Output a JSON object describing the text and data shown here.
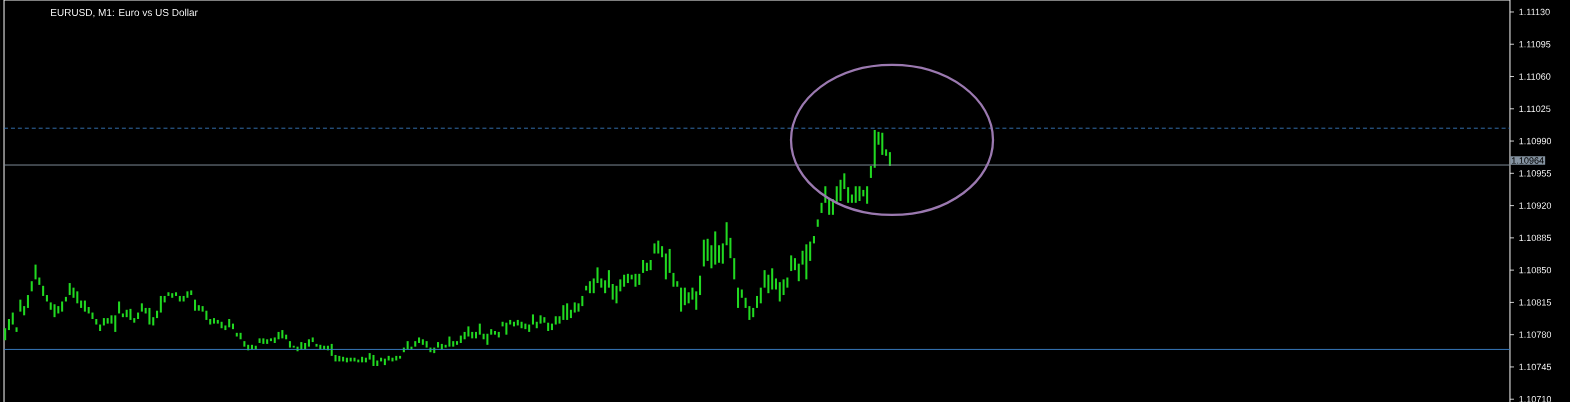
{
  "chart_data": {
    "type": "bar",
    "title": "EURUSD, M1:  Euro vs US Dollar",
    "color": "#21d921",
    "tick_labels": "y",
    "categories": [
      null,
      null,
      null,
      null,
      null,
      null,
      null,
      null,
      null,
      null,
      null,
      null,
      null,
      null,
      null,
      null,
      null,
      null,
      null,
      null,
      null,
      null,
      null,
      null,
      null,
      null,
      null,
      null,
      null,
      null,
      null,
      null,
      null,
      null,
      null,
      null,
      null,
      null,
      null,
      null,
      null,
      null,
      null,
      null,
      null,
      null,
      null,
      null,
      null,
      null,
      null,
      null,
      null,
      null,
      null,
      null,
      null,
      null,
      null,
      null,
      null,
      null,
      null,
      null,
      null,
      null,
      null,
      null,
      null,
      null,
      null,
      null,
      null,
      null,
      null,
      null,
      null,
      null,
      null,
      null,
      null,
      null,
      null,
      null,
      null,
      null,
      null,
      null,
      null,
      null,
      null,
      null,
      null,
      null,
      null,
      null,
      null,
      null,
      null,
      null,
      null,
      null,
      null,
      null,
      null,
      null,
      null,
      null,
      null,
      null,
      null,
      null,
      null,
      null,
      null,
      null,
      null,
      null,
      null,
      null,
      null,
      null,
      null,
      null,
      null,
      null,
      null,
      null,
      null,
      null,
      null,
      null,
      null,
      null,
      null,
      null,
      null,
      null,
      null,
      null,
      null,
      null,
      null,
      null,
      null,
      null,
      null,
      null,
      null,
      null,
      null,
      null,
      null,
      null,
      null,
      null,
      null,
      null,
      null,
      null,
      null,
      null,
      null,
      null,
      null,
      null,
      null,
      null,
      null,
      null,
      null,
      null,
      null,
      null,
      null,
      null,
      null,
      null,
      null,
      null,
      null,
      null,
      null,
      null,
      null,
      null,
      null,
      null,
      null,
      null,
      null,
      null,
      null,
      null,
      null,
      null,
      null,
      null,
      null,
      null,
      null,
      null,
      null,
      null,
      null,
      null,
      null,
      null,
      null,
      null,
      null,
      null,
      null,
      null,
      null,
      null,
      null,
      null,
      null,
      null,
      null,
      null,
      null,
      null,
      null,
      null,
      null,
      null,
      null,
      null,
      null,
      null,
      null,
      null,
      null,
      null,
      null,
      null,
      null,
      null,
      null,
      null,
      null,
      null,
      null,
      null,
      null,
      null,
      null,
      null,
      null,
      null,
      null,
      null,
      null,
      null,
      null,
      null,
      null,
      null,
      null,
      null,
      null,
      null,
      null,
      null,
      null,
      null,
      null,
      null,
      null,
      null,
      null,
      null,
      null,
      null,
      null,
      null,
      null,
      null,
      null,
      null,
      null,
      null,
      null,
      null,
      null,
      null,
      null,
      null,
      null,
      null,
      null,
      null,
      null,
      null,
      null,
      null,
      null,
      null,
      null,
      null,
      null,
      null,
      null,
      null,
      null,
      null,
      null,
      null,
      null,
      null,
      null,
      null,
      null,
      null,
      null,
      null,
      null,
      null,
      null,
      null,
      null,
      null,
      null,
      null,
      null,
      null,
      null,
      null,
      null,
      null,
      null,
      null,
      null,
      null,
      null,
      null,
      null,
      null,
      null,
      null,
      null,
      null,
      null,
      null,
      null,
      null,
      null,
      null,
      null,
      null,
      null,
      null,
      null,
      null,
      null,
      null,
      null,
      null,
      null,
      null,
      null,
      null,
      null,
      null,
      null,
      null,
      null,
      null,
      null,
      null,
      null,
      null,
      null,
      null,
      null,
      null,
      null,
      null,
      null,
      null,
      null,
      null,
      null,
      null,
      null,
      null,
      null,
      null,
      null,
      null,
      null,
      null,
      null,
      null,
      null
    ],
    "base": [
      1.10774,
      1.10785,
      1.10791,
      1.10783,
      1.10805,
      1.10801,
      1.10809,
      1.10827,
      1.1084,
      1.10834,
      1.10822,
      1.10816,
      1.10807,
      1.10799,
      1.10803,
      1.10805,
      1.10816,
      1.10823,
      1.1082,
      1.10814,
      1.10809,
      1.10805,
      1.10803,
      1.10797,
      1.10791,
      1.10784,
      1.1079,
      1.10792,
      1.10792,
      1.10783,
      1.10803,
      1.10799,
      1.10799,
      1.10796,
      1.10793,
      1.10797,
      1.10805,
      1.10803,
      1.10791,
      1.1079,
      1.10798,
      1.10804,
      1.10815,
      1.10822,
      1.1082,
      1.10822,
      1.10816,
      1.10816,
      1.1082,
      1.10823,
      1.10806,
      1.10806,
      1.10805,
      1.10796,
      1.10791,
      1.10792,
      1.10792,
      1.10787,
      1.10785,
      1.10788,
      1.10786,
      1.10778,
      1.10775,
      1.10767,
      1.10763,
      1.10764,
      1.10764,
      1.10771,
      1.1077,
      1.1077,
      1.10773,
      1.10771,
      1.10775,
      1.10776,
      1.10775,
      1.10766,
      1.10766,
      1.10762,
      1.10764,
      1.10764,
      1.10767,
      1.10772,
      1.10767,
      1.10764,
      1.10764,
      1.10763,
      1.10757,
      1.10751,
      1.10751,
      1.10751,
      1.1075,
      1.10751,
      1.10751,
      1.1075,
      1.1075,
      1.1075,
      1.10753,
      1.10746,
      1.10746,
      1.10751,
      1.10747,
      1.10752,
      1.10751,
      1.10752,
      1.10754,
      1.10761,
      1.10764,
      1.10764,
      1.10767,
      1.10771,
      1.10769,
      1.10766,
      1.10761,
      1.1076,
      1.10766,
      1.10764,
      1.10766,
      1.10767,
      1.10767,
      1.10769,
      1.10771,
      1.10775,
      1.10778,
      1.10776,
      1.10776,
      1.1078,
      1.10775,
      1.10769,
      1.1078,
      1.1078,
      1.10777,
      1.10789,
      1.1078,
      1.10791,
      1.10789,
      1.1079,
      1.10787,
      1.10786,
      1.10783,
      1.10791,
      1.10787,
      1.10792,
      1.10793,
      1.10784,
      1.10785,
      1.10791,
      1.10792,
      1.10796,
      1.10796,
      1.10798,
      1.10804,
      1.10805,
      1.10811,
      1.10828,
      1.10825,
      1.10825,
      1.10836,
      1.10831,
      1.10825,
      1.10831,
      1.10818,
      1.10814,
      1.10827,
      1.10832,
      1.10836,
      1.1084,
      1.10832,
      1.10834,
      1.10847,
      1.10849,
      1.1085,
      1.10868,
      1.10868,
      1.10864,
      1.1084,
      1.10847,
      1.10832,
      1.10832,
      1.10805,
      1.10812,
      1.10814,
      1.10818,
      1.10807,
      1.10823,
      1.10854,
      1.1086,
      1.10852,
      1.10856,
      1.10858,
      1.10857,
      1.10877,
      1.10863,
      1.1084,
      1.10809,
      1.1082,
      1.10809,
      1.10796,
      1.10799,
      1.10809,
      1.10814,
      1.10831,
      1.10825,
      1.10829,
      1.10829,
      1.10816,
      1.10823,
      1.10831,
      1.10849,
      1.1085,
      1.10838,
      1.10856,
      1.1084,
      1.1086,
      1.10879,
      1.10897,
      1.10912,
      1.10923,
      1.1091,
      1.1091,
      1.10923,
      1.10925,
      1.10938,
      1.10923,
      1.10923,
      1.10923,
      1.10925,
      1.1093,
      1.10922,
      1.1095,
      1.10961,
      1.10986,
      1.10975,
      1.10974,
      1.10963,
      null,
      null,
      null,
      null,
      null,
      null,
      null,
      null,
      null,
      null,
      null,
      null,
      null,
      null,
      null,
      null,
      null,
      null,
      null,
      null,
      null,
      null,
      null,
      null,
      null,
      null,
      null,
      null,
      null,
      null,
      null,
      null,
      null,
      null,
      null,
      null,
      null,
      null,
      null,
      null,
      null,
      null,
      null,
      null,
      null,
      null,
      null,
      null,
      null,
      null,
      null,
      null,
      null,
      null,
      null,
      null,
      null,
      null,
      null,
      null,
      null,
      null,
      null,
      null,
      null,
      null,
      null,
      null,
      null,
      null,
      null,
      null,
      null,
      null,
      null,
      null,
      null,
      null,
      null,
      null,
      null,
      null,
      null,
      null,
      null,
      null,
      null,
      null,
      null,
      null,
      null,
      null,
      null,
      null,
      null,
      null,
      null,
      null,
      null,
      null,
      null,
      null,
      null,
      null,
      null,
      null,
      null,
      null,
      null,
      null,
      null,
      null,
      null,
      null,
      null,
      null,
      null,
      null,
      null,
      null,
      null,
      null,
      null,
      null,
      null,
      null,
      null,
      null,
      null,
      null,
      null,
      null,
      null,
      null,
      null,
      null,
      null,
      null,
      null,
      null,
      null,
      null,
      null,
      null,
      null,
      null,
      null,
      null,
      null,
      null,
      null,
      null,
      null,
      null,
      null,
      null,
      null,
      null,
      null,
      null,
      null,
      null,
      null
    ],
    "values": [
      0.00013,
      0.00012,
      0.00013,
      5e-05,
      0.00013,
      0.0001,
      0.00014,
      0.00011,
      0.00016,
      8e-05,
      0.00011,
      7e-05,
      8e-05,
      0.00014,
      8e-05,
      0.00011,
      5e-05,
      0.00013,
      0.00011,
      0.00013,
      8e-05,
      0.00012,
      7e-05,
      7e-05,
      6e-05,
      7e-05,
      8e-05,
      6e-05,
      9e-05,
      0.00018,
      0.00013,
      4e-05,
      8e-05,
      0.00012,
      5e-05,
      7e-05,
      9e-05,
      6e-05,
      0.00018,
      9e-05,
      8e-05,
      0.00018,
      7e-05,
      4e-05,
      5e-05,
      4e-05,
      6e-05,
      6e-05,
      7e-05,
      5e-05,
      0.00012,
      6e-05,
      6e-05,
      0.0001,
      6e-05,
      6e-05,
      4e-05,
      7e-05,
      5e-05,
      9e-05,
      6e-05,
      4e-05,
      7e-05,
      6e-05,
      6e-05,
      5e-05,
      4e-05,
      5e-05,
      6e-05,
      5e-05,
      3e-05,
      6e-05,
      8e-05,
      9e-05,
      5e-05,
      7e-05,
      2e-05,
      5e-05,
      8e-05,
      7e-05,
      8e-05,
      5e-05,
      3e-05,
      5e-05,
      4e-05,
      5e-05,
      0.00013,
      7e-05,
      6e-05,
      5e-05,
      5e-05,
      4e-05,
      4e-05,
      3e-05,
      6e-05,
      5e-05,
      7e-05,
      0.00012,
      6e-05,
      4e-05,
      7e-05,
      5e-05,
      4e-05,
      5e-05,
      3e-05,
      5e-05,
      9e-05,
      3e-05,
      6e-05,
      6e-05,
      6e-05,
      7e-05,
      5e-05,
      6e-05,
      6e-05,
      6e-05,
      3e-05,
      0.00011,
      6e-05,
      4e-05,
      8e-05,
      8e-05,
      0.00011,
      7e-05,
      7e-05,
      0.00012,
      6e-05,
      0.00012,
      6e-05,
      4e-05,
      6e-05,
      5e-05,
      0.00013,
      5e-05,
      5e-05,
      6e-05,
      7e-05,
      6e-05,
      8e-05,
      0.00011,
      7e-05,
      9e-05,
      6e-05,
      9e-05,
      7e-05,
      9e-05,
      8e-05,
      0.00016,
      0.00018,
      9e-05,
      0.00011,
      9e-05,
      0.00011,
      5e-05,
      0.00013,
      0.00016,
      0.00017,
      0.0001,
      0.00014,
      0.00019,
      0.00017,
      0.00019,
      0.00013,
      0.00013,
      0.0001,
      5e-05,
      0.00014,
      0.00012,
      0.00014,
      9e-05,
      0.00011,
      0.00011,
      0.00014,
      0.00012,
      0.00028,
      0.00026,
      0.00015,
      6e-05,
      0.00026,
      0.00019,
      0.00012,
      0.00013,
      0.0002,
      0.00021,
      0.00029,
      0.00024,
      0.00025,
      0.00036,
      0.00019,
      0.00022,
      0.00025,
      0.00022,
      0.00023,
      0.00022,
      9e-05,
      0.00011,
      0.00015,
      0.0001,
      0.00013,
      0.00017,
      0.00019,
      0.0002,
      0.00023,
      0.00012,
      0.00021,
      0.00017,
      0.00011,
      0.00017,
      0.00013,
      0.00019,
      0.00015,
      0.00038,
      0.00021,
      8e-05,
      8e-05,
      0.00011,
      0.00018,
      0.00018,
      0.00017,
      0.00018,
      0.00023,
      0.00017,
      0.00017,
      9e-05,
      0.00018,
      0.00016,
      7e-05,
      0.00019,
      0.00013,
      0.00041,
      0.00014,
      0.00024,
      7e-05,
      0.00015,
      null,
      null,
      null,
      null,
      null,
      null,
      null,
      null,
      null,
      null,
      null,
      null,
      null,
      null,
      null,
      null,
      null,
      null,
      null,
      null,
      null,
      null,
      null,
      null,
      null,
      null,
      null,
      null,
      null,
      null,
      null,
      null,
      null,
      null,
      null,
      null,
      null,
      null,
      null,
      null,
      null,
      null,
      null,
      null,
      null,
      null,
      null,
      null,
      null,
      null,
      null,
      null,
      null,
      null,
      null,
      null,
      null,
      null,
      null,
      null,
      null,
      null,
      null,
      null,
      null,
      null,
      null,
      null,
      null,
      null,
      null,
      null,
      null,
      null,
      null,
      null,
      null,
      null,
      null,
      null,
      null,
      null,
      null,
      null,
      null,
      null,
      null,
      null,
      null,
      null,
      null,
      null,
      null,
      null,
      null,
      null,
      null,
      null,
      null,
      null,
      null,
      null,
      null,
      null,
      null,
      null,
      null,
      null,
      null,
      null,
      null,
      null,
      null,
      null,
      null,
      null,
      null,
      null,
      null,
      null,
      null,
      null,
      null,
      null,
      null,
      null,
      null,
      null,
      null,
      null,
      null,
      null,
      null,
      null,
      null,
      null,
      null,
      null,
      null,
      null,
      null,
      null,
      null,
      null,
      null,
      null,
      null,
      null,
      null,
      null,
      null,
      null,
      null,
      null,
      null,
      null,
      null,
      null,
      null,
      null,
      null,
      null,
      null
    ],
    "ylim": [
      1.10707,
      1.11143
    ],
    "yticks": [
      {
        "value": 1.1113,
        "label": "1.11130"
      },
      {
        "value": 1.11095,
        "label": "1.11095"
      },
      {
        "value": 1.1106,
        "label": "1.11060"
      },
      {
        "value": 1.11025,
        "label": "1.11025"
      },
      {
        "value": 1.1099,
        "label": "1.10990"
      },
      {
        "value": 1.10955,
        "label": "1.10955"
      },
      {
        "value": 1.1092,
        "label": "1.10920"
      },
      {
        "value": 1.10885,
        "label": "1.10885"
      },
      {
        "value": 1.1085,
        "label": "1.10850"
      },
      {
        "value": 1.10815,
        "label": "1.10815"
      },
      {
        "value": 1.1078,
        "label": "1.10780"
      },
      {
        "value": 1.10745,
        "label": "1.10745"
      },
      {
        "value": 1.1071,
        "label": "1.10710"
      }
    ],
    "ref_lines": [
      {
        "axis": "y",
        "value": 1.11004,
        "color": "#3b7fc6",
        "line_style": "dashed"
      },
      {
        "axis": "y",
        "value": 1.10964,
        "label": "1.10964",
        "color": "#8593a1",
        "line_style": "solid"
      },
      {
        "axis": "y",
        "value": 1.10764,
        "color": "#3b7fc6",
        "line_style": "solid"
      }
    ]
  }
}
